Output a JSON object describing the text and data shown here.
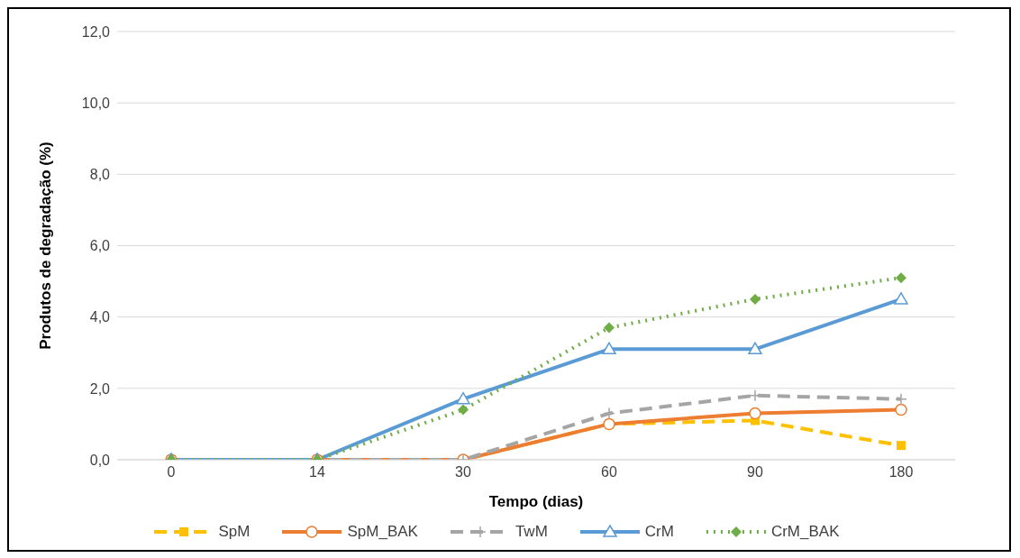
{
  "chart_data": {
    "type": "line",
    "xlabel": "Tempo (dias)",
    "ylabel": "Produtos de degradação (%)",
    "categories": [
      "0",
      "14",
      "30",
      "60",
      "90",
      "180"
    ],
    "ylim": [
      0,
      12
    ],
    "yticks": [
      {
        "value": 0,
        "label": "0,0"
      },
      {
        "value": 2,
        "label": "2,0"
      },
      {
        "value": 4,
        "label": "4,0"
      },
      {
        "value": 6,
        "label": "6,0"
      },
      {
        "value": 8,
        "label": "8,0"
      },
      {
        "value": 10,
        "label": "10,0"
      },
      {
        "value": 12,
        "label": "12,0"
      }
    ],
    "grid": "y",
    "legend": "bottom",
    "series": [
      {
        "name": "SpM",
        "color": "#ffc000",
        "marker": "square",
        "line_style": "dashed",
        "values": [
          0,
          0,
          0,
          1.0,
          1.1,
          0.4
        ]
      },
      {
        "name": "SpM_BAK",
        "color": "#ed7d31",
        "marker": "circle",
        "line_style": "solid",
        "values": [
          0,
          0,
          0,
          1.0,
          1.3,
          1.4
        ]
      },
      {
        "name": "TwM",
        "color": "#a5a5a5",
        "marker": "cross",
        "line_style": "dashed",
        "values": [
          0,
          0,
          0,
          1.3,
          1.8,
          1.7
        ]
      },
      {
        "name": "CrM",
        "color": "#5b9bd5",
        "marker": "triangle",
        "line_style": "solid",
        "values": [
          0,
          0,
          1.7,
          3.1,
          3.1,
          4.5
        ]
      },
      {
        "name": "CrM_BAK",
        "color": "#70ad47",
        "marker": "diamond",
        "line_style": "dotted",
        "values": [
          0,
          0,
          1.4,
          3.7,
          4.5,
          5.1
        ]
      }
    ]
  }
}
